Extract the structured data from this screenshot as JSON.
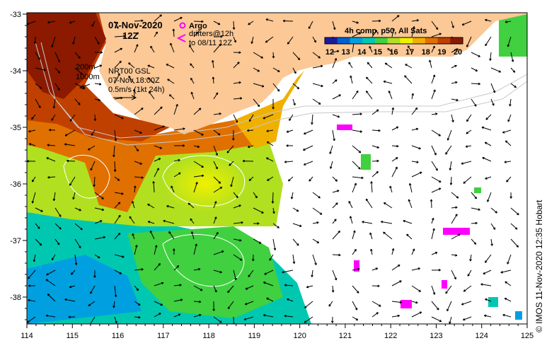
{
  "title": {
    "date": "07-Nov-2020",
    "time": "12Z"
  },
  "legend": {
    "argo_label": "Argo",
    "drifters_line1": "drifters@12h",
    "drifters_line2": "to 08/11 12Z",
    "argo_color": "#ff00ff",
    "drifter_color": "#ff00ff"
  },
  "colorbar": {
    "title": "4h comp, p50, All Sats",
    "ticks": [
      "12",
      "13",
      "14",
      "15",
      "16",
      "17",
      "18",
      "19",
      "20"
    ],
    "colors": [
      "#1a1aa0",
      "#0060d0",
      "#00a0e0",
      "#00c8b0",
      "#40d040",
      "#b0e020",
      "#f0f000",
      "#f0b000",
      "#e07000",
      "#c04000",
      "#8b1a00"
    ]
  },
  "currents_legend": {
    "contour1": "200m",
    "contour2": "1000m",
    "model": "NRT00 GSL",
    "valid": "07-Nov 18:00Z",
    "scale": "0.5m/s (1kt 24h)"
  },
  "axes": {
    "x_ticks": [
      "114",
      "115",
      "116",
      "117",
      "118",
      "119",
      "120",
      "121",
      "122",
      "123",
      "124",
      "125"
    ],
    "y_ticks": [
      "-33",
      "-34",
      "-35",
      "-36",
      "-37",
      "-38"
    ]
  },
  "credit": "© IMOS 11-Nov-2020 12:35 Hobart",
  "colors": {
    "land": "#fbc896",
    "ocean_missing": "#ffffff"
  }
}
